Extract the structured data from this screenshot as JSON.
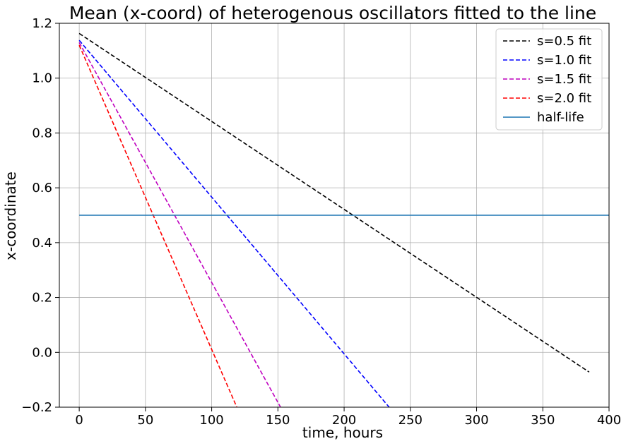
{
  "chart_data": {
    "type": "line",
    "title": "Mean (x-coord) of heterogenous oscillators fitted to the line",
    "xlabel": "time, hours",
    "ylabel": "x-coordinate",
    "xlim": [
      -15,
      400
    ],
    "ylim": [
      -0.2,
      1.2
    ],
    "xticks": [
      0,
      50,
      100,
      150,
      200,
      250,
      300,
      350,
      400
    ],
    "xtick_labels": [
      "0",
      "50",
      "100",
      "150",
      "200",
      "250",
      "300",
      "350",
      "400"
    ],
    "yticks": [
      -0.2,
      0.0,
      0.2,
      0.4,
      0.6,
      0.8,
      1.0,
      1.2
    ],
    "ytick_labels": [
      "−0.2",
      "0.0",
      "0.2",
      "0.4",
      "0.6",
      "0.8",
      "1.0",
      "1.2"
    ],
    "grid": true,
    "legend_position": "top-right",
    "series": [
      {
        "name": "s=0.5 fit",
        "color": "#000000",
        "style": "dashed",
        "x": [
          0,
          385
        ],
        "y": [
          1.163,
          -0.072
        ]
      },
      {
        "name": "s=1.0 fit",
        "color": "#0000ff",
        "style": "dashed",
        "x": [
          0,
          234
        ],
        "y": [
          1.138,
          -0.2
        ]
      },
      {
        "name": "s=1.5 fit",
        "color": "#bf00bf",
        "style": "dashed",
        "x": [
          0,
          152
        ],
        "y": [
          1.13,
          -0.2
        ]
      },
      {
        "name": "s=2.0 fit",
        "color": "#ff0000",
        "style": "dashed",
        "x": [
          0,
          119
        ],
        "y": [
          1.12,
          -0.2
        ]
      },
      {
        "name": "half-life",
        "color": "#1f77b4",
        "style": "solid",
        "x": [
          0,
          400
        ],
        "y": [
          0.5,
          0.5
        ]
      }
    ]
  }
}
